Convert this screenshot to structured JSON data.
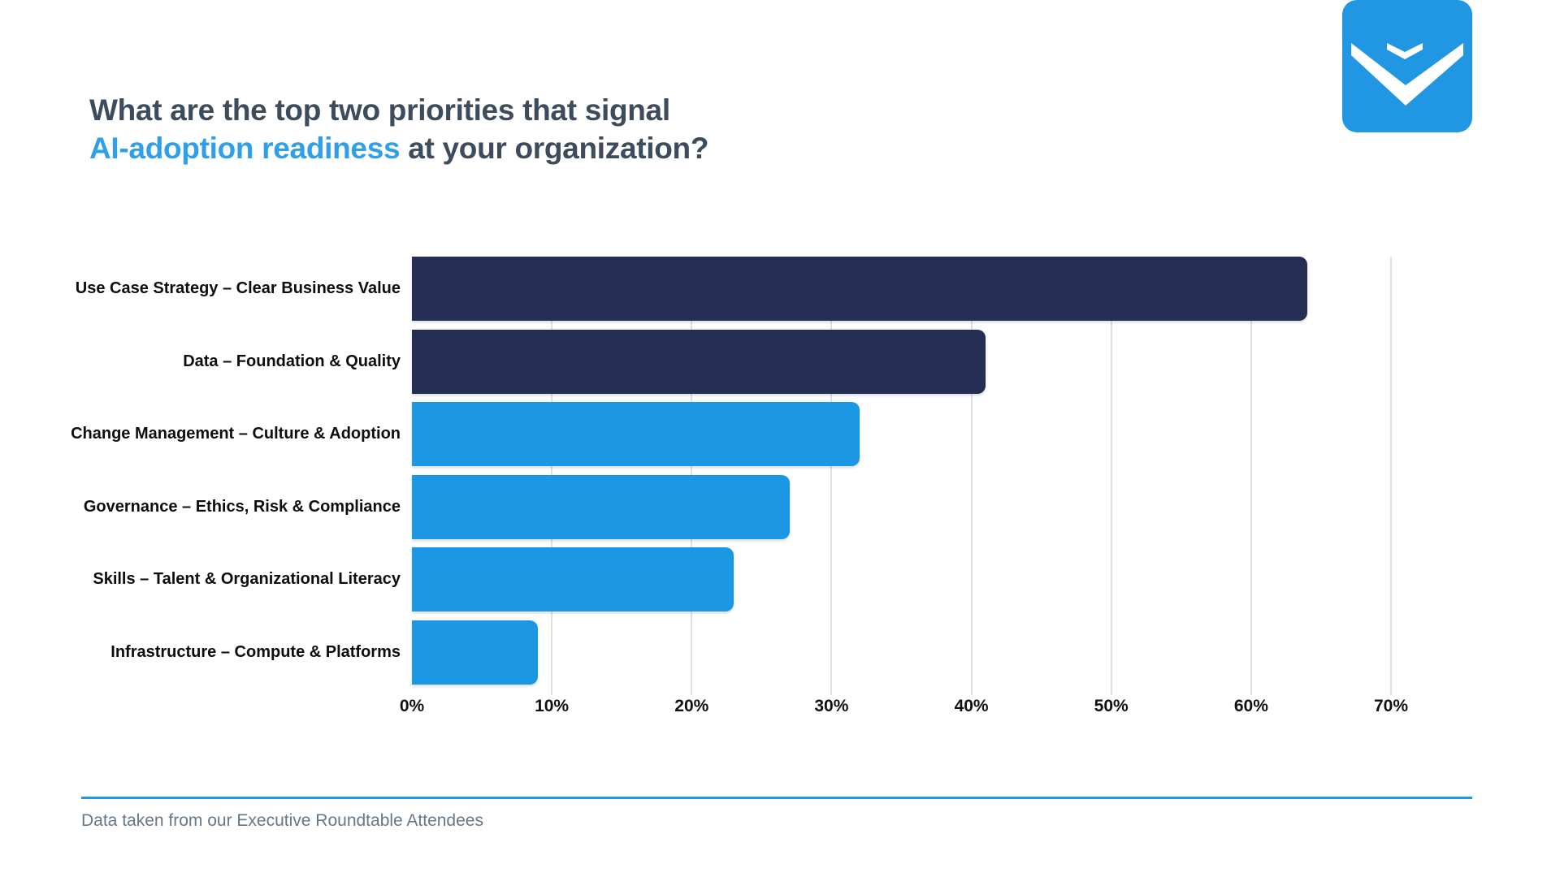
{
  "header": {
    "title_line1": "What are the top two priorities that signal",
    "title_accent": "AI-adoption readiness",
    "title_line2_rest": " at your organization?"
  },
  "logo": {
    "name": "v-chevron-logo",
    "background_color": "#2196e3",
    "mark_color": "#ffffff"
  },
  "chart_data": {
    "type": "bar",
    "orientation": "horizontal",
    "title": "What are the top two priorities that signal AI-adoption readiness at your organization?",
    "categories": [
      "Use Case Strategy – Clear Business Value",
      "Data – Foundation & Quality",
      "Change Management – Culture & Adoption",
      "Governance – Ethics, Risk & Compliance",
      "Skills – Talent & Organizational Literacy",
      "Infrastructure – Compute & Platforms"
    ],
    "values": [
      64,
      41,
      32,
      27,
      23,
      9
    ],
    "unit": "%",
    "bar_colors": [
      "#232e52",
      "#232e52",
      "#1b97e3",
      "#1b97e3",
      "#1b97e3",
      "#1b97e3"
    ],
    "xlim": [
      0,
      70
    ],
    "tick_step": 10,
    "xlabel_ticks": [
      "0%",
      "10%",
      "20%",
      "30%",
      "40%",
      "50%",
      "60%",
      "70%"
    ],
    "grid": true,
    "gridline_color": "#e0e0e0",
    "legend": false
  },
  "colors": {
    "title_dark": "#3d4c5c",
    "title_accent": "#2e9fe8",
    "axis_text": "#111111",
    "footer_text": "#64788a",
    "footer_rule": "#2196e3",
    "background": "#ffffff"
  },
  "footer": {
    "note": "Data taken from our Executive Roundtable Attendees"
  }
}
